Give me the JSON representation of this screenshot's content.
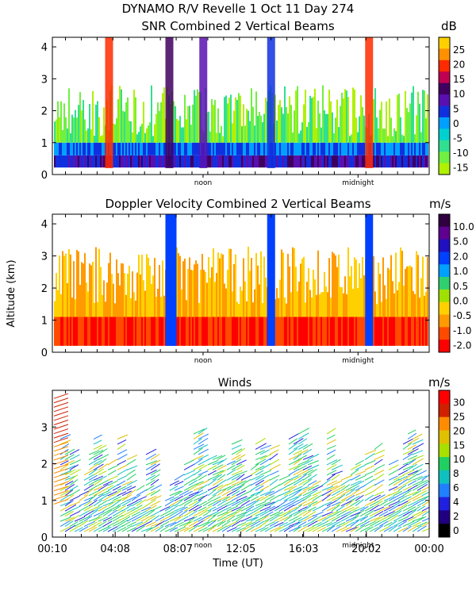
{
  "figure": {
    "title_line1": "DYNAMO R/V Revelle   1 Oct 11 Day 274",
    "ylabel": "Altitude (km)",
    "xlabel": "Time (UT)",
    "time_ticks": [
      "00:10",
      "04:08",
      "08:07",
      "12:05",
      "16:03",
      "20:02",
      "00:00"
    ],
    "noon_label": "noon",
    "midnight_label": "midnight"
  },
  "chart_data": [
    {
      "type": "heatmap",
      "title": "SNR Combined 2 Vertical Beams",
      "xlabel": "Time (UT)",
      "ylabel": "Altitude (km)",
      "xlim_hours": [
        0.17,
        24.0
      ],
      "ylim_km": [
        0,
        4.3
      ],
      "yticks": [
        "0",
        "1",
        "2",
        "3",
        "4"
      ],
      "colorbar_unit": "dB",
      "colorbar_ticks": [
        "25",
        "20",
        "15",
        "10",
        "5",
        "0",
        "-5",
        "-10",
        "-15"
      ],
      "colorbar_colors": [
        "#ffd000",
        "#ff9000",
        "#ff2a00",
        "#c00050",
        "#400060",
        "#5a10b0",
        "#1030e0",
        "#00a0ff",
        "#00d0d0",
        "#30e090",
        "#70f040",
        "#b0f000"
      ]
    },
    {
      "type": "heatmap",
      "title": "Doppler Velocity Combined 2 Vertical Beams",
      "xlabel": "Time (UT)",
      "ylabel": "Altitude (km)",
      "xlim_hours": [
        0.17,
        24.0
      ],
      "ylim_km": [
        0,
        4.3
      ],
      "yticks": [
        "0",
        "1",
        "2",
        "3",
        "4"
      ],
      "colorbar_unit": "m/s",
      "colorbar_ticks": [
        "10.0",
        "5.0",
        "2.0",
        "1.0",
        "0.5",
        "0.0",
        "-0.5",
        "-1.0",
        "-2.0"
      ],
      "colorbar_colors": [
        "#300040",
        "#600090",
        "#2010c0",
        "#0040ff",
        "#00a0ff",
        "#30d070",
        "#a0e000",
        "#ffd000",
        "#ff9a00",
        "#ff4a00",
        "#ff0000"
      ]
    },
    {
      "type": "scatter",
      "subtype": "wind-barbs",
      "title": "Winds",
      "xlabel": "Time (UT)",
      "ylabel": "Altitude (km)",
      "xlim_hours": [
        0.17,
        24.0
      ],
      "ylim_km": [
        0,
        4.0
      ],
      "yticks": [
        "0",
        "1",
        "2",
        "3"
      ],
      "colorbar_unit": "m/s",
      "colorbar_ticks": [
        "30",
        "25",
        "20",
        "15",
        "10",
        "8",
        "6",
        "4",
        "2",
        "0"
      ],
      "colorbar_colors": [
        "#ff0000",
        "#d02000",
        "#ff8c00",
        "#e0c000",
        "#a8e000",
        "#20d060",
        "#10c0c0",
        "#2080ff",
        "#2020e0",
        "#200080",
        "#000000"
      ]
    }
  ]
}
